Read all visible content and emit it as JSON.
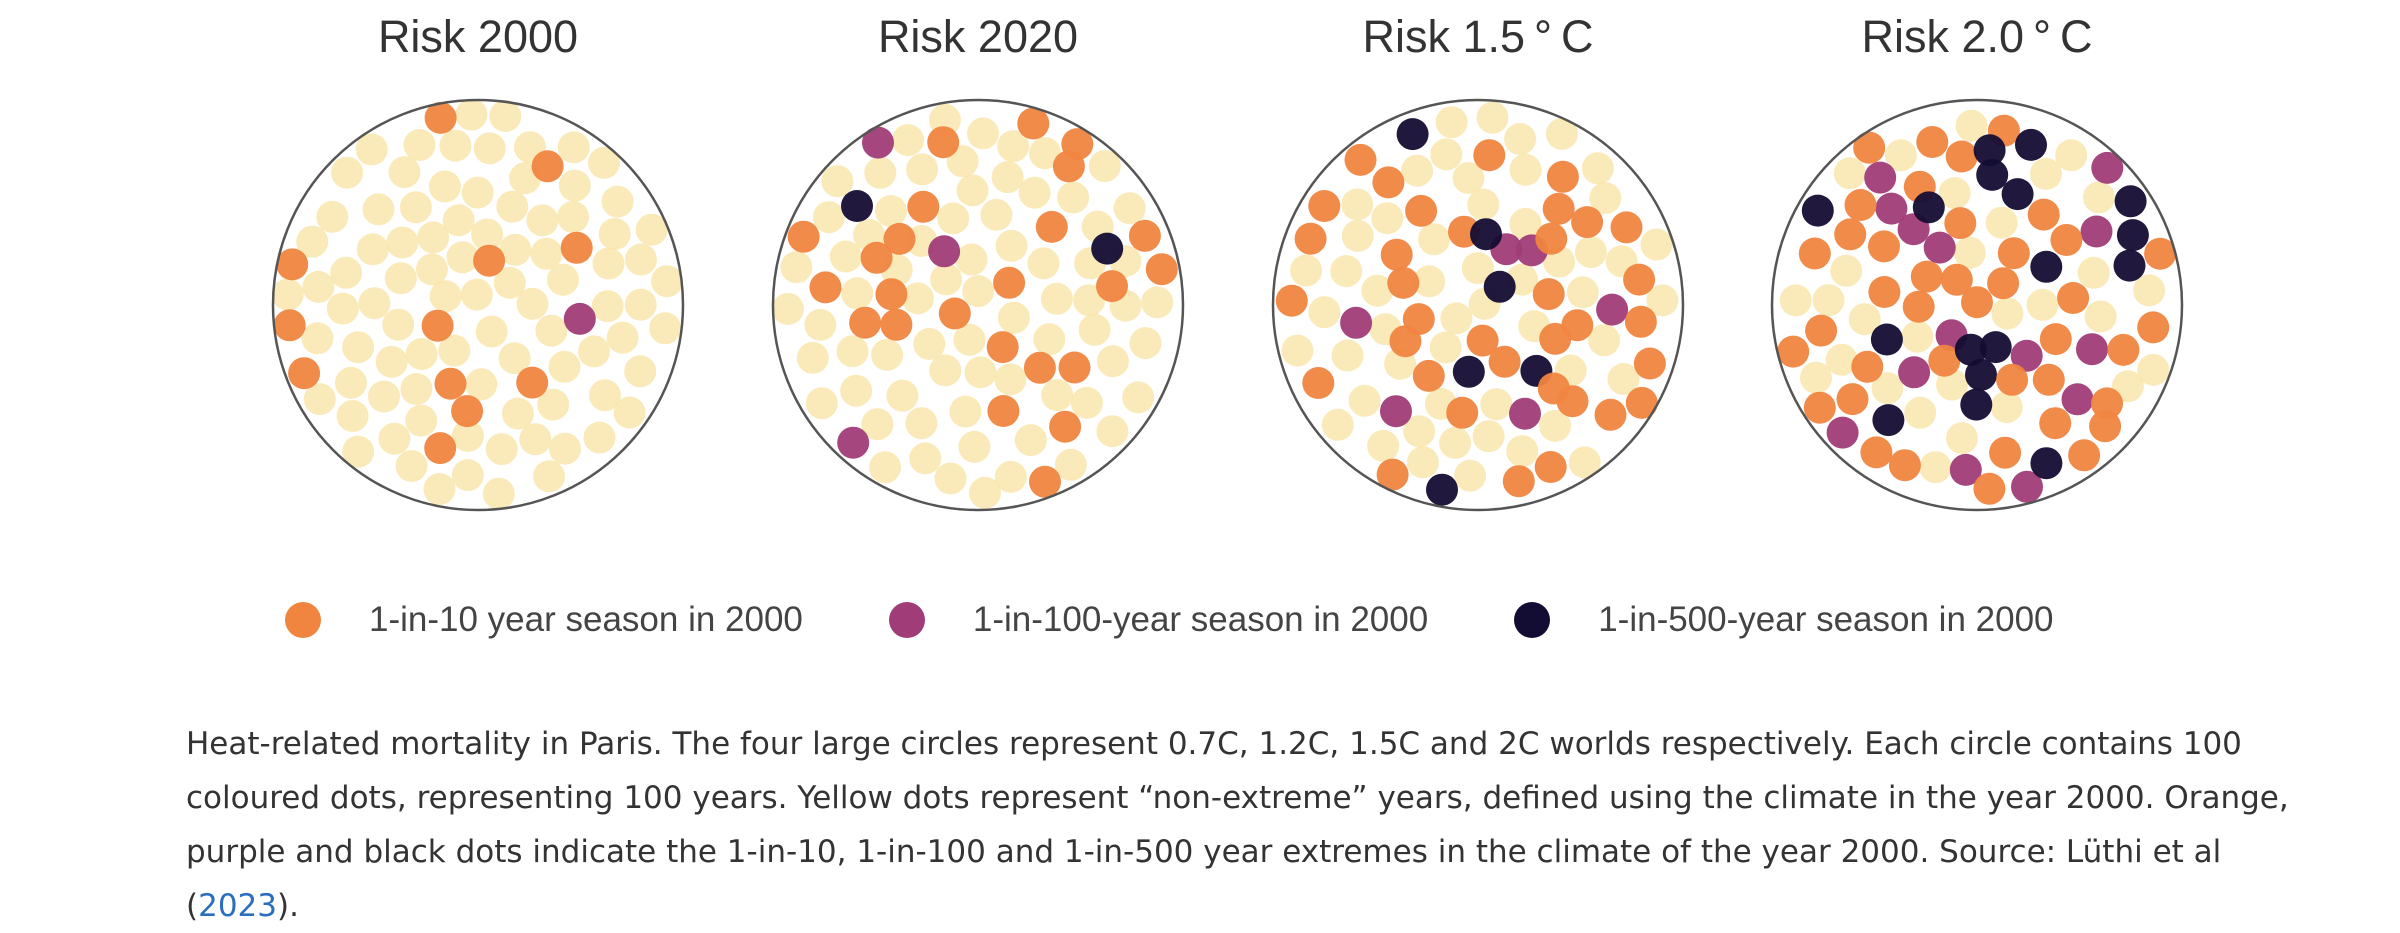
{
  "chart_data": {
    "type": "scatter",
    "description_note": "",
    "colors": {
      "non_extreme": "#f8e3a1",
      "one_in_10": "#f08540",
      "one_in_100": "#a03c78",
      "one_in_500": "#140d33",
      "circle_outline": "#555555"
    },
    "panels": [
      {
        "title": "Risk 2000",
        "counts": {
          "one_in_10": 12,
          "one_in_100": 1,
          "one_in_500": 0
        }
      },
      {
        "title": "Risk 2020",
        "counts": {
          "one_in_10": 24,
          "one_in_100": 3,
          "one_in_500": 2
        }
      },
      {
        "title": "Risk 1.5 ° C",
        "counts": {
          "one_in_10": 35,
          "one_in_100": 6,
          "one_in_500": 6
        }
      },
      {
        "title": "Risk 2.0 ° C",
        "counts": {
          "one_in_10": 40,
          "one_in_100": 14,
          "one_in_500": 17
        }
      }
    ],
    "dots_per_panel": 100,
    "legend": [
      {
        "label": "1-in-10 year season in 2000",
        "color": "#f08540"
      },
      {
        "label": "1-in-100-year season in 2000",
        "color": "#a03c78"
      },
      {
        "label": "1-in-500-year season in 2000",
        "color": "#140d33"
      }
    ]
  },
  "caption": {
    "text": "Heat-related mortality in Paris. The four large circles represent 0.7C, 1.2C, 1.5C and 2C worlds respectively. Each circle contains 100 coloured dots, representing 100 years. Yellow dots represent “non-extreme” years, defined using the climate in the year 2000. Orange, purple and black dots indicate the 1-in-10, 1-in-100 and 1-in-500 year extremes in the climate of the year 2000. Source: Lüthi et al (",
    "link_text": "2023",
    "suffix": ")."
  }
}
